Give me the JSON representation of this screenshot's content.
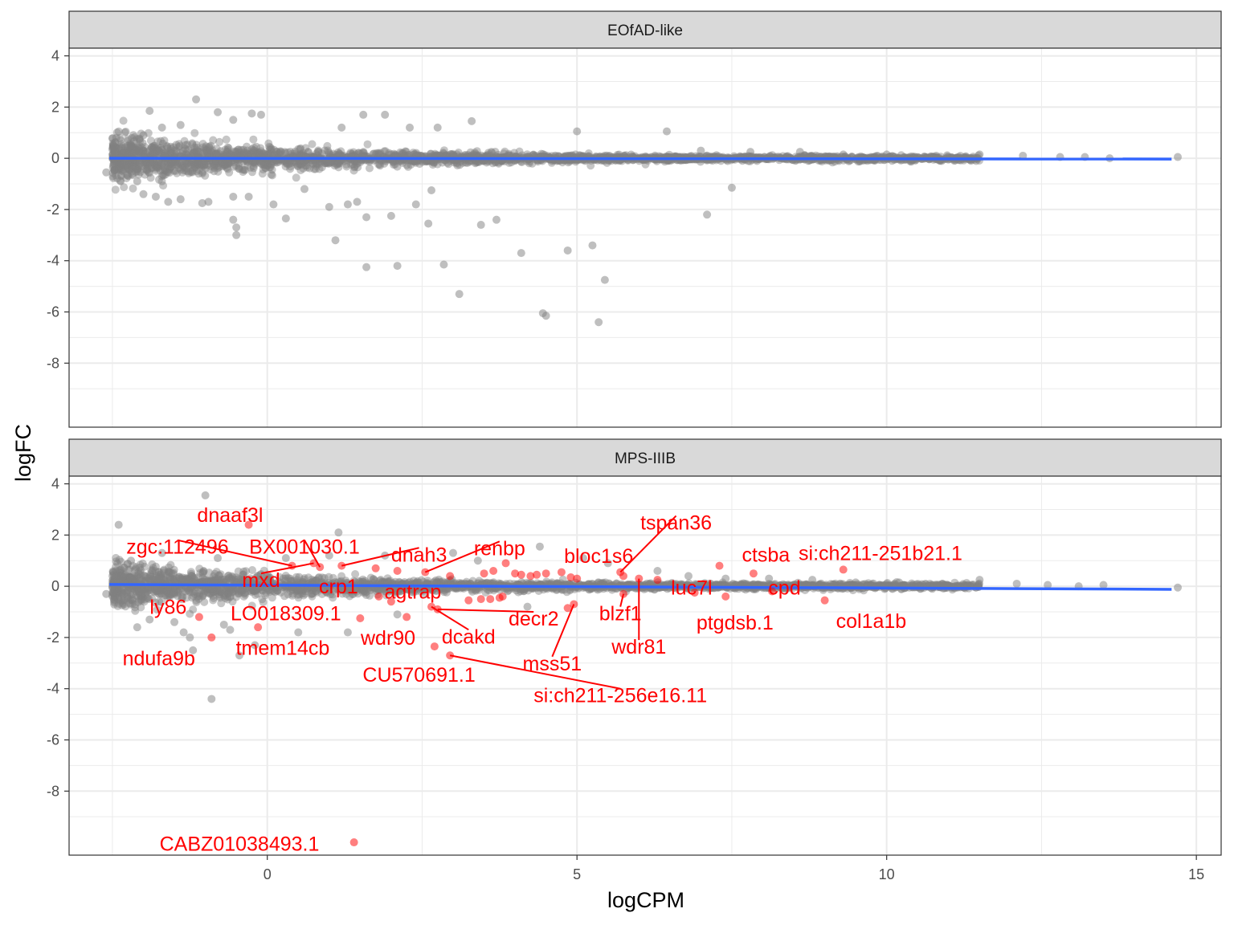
{
  "chart_data": {
    "type": "scatter",
    "title": "",
    "xlabel": "logCPM",
    "ylabel": "logFC",
    "xlim": [
      -3.2,
      15.4
    ],
    "ylim": [
      -10.5,
      4.3
    ],
    "x_ticks": [
      0,
      5,
      10,
      15
    ],
    "y_ticks": [
      4,
      2,
      0,
      -2,
      -4,
      -6,
      -8
    ],
    "grid": true,
    "colors": {
      "background_points": "#808080",
      "highlight_points": "#ff0000",
      "trend_line": "#3366ff",
      "strip_fill": "#d9d9d9",
      "grid": "#ebebeb"
    },
    "panels": [
      {
        "name": "EOfAD-like",
        "trend": {
          "x": [
            -2.55,
            14.6
          ],
          "y": [
            0.0,
            -0.03
          ]
        },
        "background_points": [
          {
            "x": -2.6,
            "y": -0.55
          },
          {
            "x": -2.5,
            "y": 0.35
          },
          {
            "x": -2.2,
            "y": 0.5
          },
          {
            "x": -2.1,
            "y": -0.9
          },
          {
            "x": -2.0,
            "y": 0.9
          },
          {
            "x": -2.0,
            "y": -1.4
          },
          {
            "x": -1.9,
            "y": 1.85
          },
          {
            "x": -1.8,
            "y": -1.5
          },
          {
            "x": -1.7,
            "y": 1.2
          },
          {
            "x": -1.6,
            "y": -1.7
          },
          {
            "x": -1.4,
            "y": -1.6
          },
          {
            "x": -1.4,
            "y": 1.3
          },
          {
            "x": -1.15,
            "y": 2.3
          },
          {
            "x": -1.05,
            "y": -1.75
          },
          {
            "x": -0.95,
            "y": -1.7
          },
          {
            "x": -0.8,
            "y": 1.8
          },
          {
            "x": -0.55,
            "y": 1.5
          },
          {
            "x": -0.55,
            "y": -1.5
          },
          {
            "x": -0.25,
            "y": 1.75
          },
          {
            "x": -0.55,
            "y": -2.4
          },
          {
            "x": -0.5,
            "y": -2.7
          },
          {
            "x": -0.5,
            "y": -3.0
          },
          {
            "x": -0.3,
            "y": -1.5
          },
          {
            "x": -0.1,
            "y": 1.7
          },
          {
            "x": 0.1,
            "y": -1.8
          },
          {
            "x": 0.3,
            "y": -2.35
          },
          {
            "x": 0.6,
            "y": -1.2
          },
          {
            "x": 1.0,
            "y": -1.9
          },
          {
            "x": 1.1,
            "y": -3.2
          },
          {
            "x": 1.2,
            "y": 1.2
          },
          {
            "x": 1.3,
            "y": -1.8
          },
          {
            "x": 1.45,
            "y": -1.7
          },
          {
            "x": 1.6,
            "y": -4.25
          },
          {
            "x": 1.6,
            "y": -2.3
          },
          {
            "x": 1.55,
            "y": 1.7
          },
          {
            "x": 1.9,
            "y": 1.7
          },
          {
            "x": 2.0,
            "y": -2.25
          },
          {
            "x": 2.1,
            "y": -4.2
          },
          {
            "x": 2.3,
            "y": 1.2
          },
          {
            "x": 2.4,
            "y": -1.8
          },
          {
            "x": 2.6,
            "y": -2.55
          },
          {
            "x": 2.65,
            "y": -1.25
          },
          {
            "x": 2.75,
            "y": 1.2
          },
          {
            "x": 2.85,
            "y": -4.15
          },
          {
            "x": 3.1,
            "y": -5.3
          },
          {
            "x": 3.3,
            "y": 1.45
          },
          {
            "x": 3.45,
            "y": -2.6
          },
          {
            "x": 3.7,
            "y": -2.4
          },
          {
            "x": 4.1,
            "y": -3.7
          },
          {
            "x": 4.45,
            "y": -6.05
          },
          {
            "x": 4.5,
            "y": -6.15
          },
          {
            "x": 4.85,
            "y": -3.6
          },
          {
            "x": 5.0,
            "y": 1.05
          },
          {
            "x": 5.25,
            "y": -3.4
          },
          {
            "x": 5.45,
            "y": -4.75
          },
          {
            "x": 5.35,
            "y": -6.4
          },
          {
            "x": 6.45,
            "y": 1.05
          },
          {
            "x": 7.1,
            "y": -2.2
          },
          {
            "x": 7.5,
            "y": -1.15
          },
          {
            "x": 7.0,
            "y": 0.3
          },
          {
            "x": 7.8,
            "y": 0.25
          },
          {
            "x": 8.6,
            "y": 0.25
          },
          {
            "x": 9.3,
            "y": 0.15
          },
          {
            "x": 10.0,
            "y": 0.15
          },
          {
            "x": 10.8,
            "y": 0.1
          },
          {
            "x": 11.5,
            "y": 0.15
          },
          {
            "x": 12.2,
            "y": 0.1
          },
          {
            "x": 12.8,
            "y": 0.05
          },
          {
            "x": 13.2,
            "y": 0.05
          },
          {
            "x": 13.6,
            "y": 0.0
          },
          {
            "x": 14.7,
            "y": 0.05
          }
        ]
      },
      {
        "name": "MPS-IIIB",
        "trend": {
          "x": [
            -2.55,
            14.6
          ],
          "y": [
            0.07,
            -0.12
          ]
        },
        "background_points": [
          {
            "x": -2.6,
            "y": -0.3
          },
          {
            "x": -2.4,
            "y": 2.4
          },
          {
            "x": -2.2,
            "y": 1.0
          },
          {
            "x": -2.1,
            "y": -1.6
          },
          {
            "x": -1.9,
            "y": -1.3
          },
          {
            "x": -1.7,
            "y": 1.3
          },
          {
            "x": -1.5,
            "y": -1.4
          },
          {
            "x": -1.35,
            "y": -1.8
          },
          {
            "x": -1.25,
            "y": -2.0
          },
          {
            "x": -1.2,
            "y": -2.5
          },
          {
            "x": -1.0,
            "y": 3.55
          },
          {
            "x": -0.9,
            "y": -4.4
          },
          {
            "x": -0.8,
            "y": 1.1
          },
          {
            "x": -0.7,
            "y": -1.5
          },
          {
            "x": -0.6,
            "y": -1.7
          },
          {
            "x": -0.45,
            "y": -2.7
          },
          {
            "x": -0.2,
            "y": -2.3
          },
          {
            "x": 0.3,
            "y": 1.1
          },
          {
            "x": 0.5,
            "y": -1.8
          },
          {
            "x": 1.0,
            "y": 1.2
          },
          {
            "x": 1.15,
            "y": 2.1
          },
          {
            "x": 1.3,
            "y": -1.8
          },
          {
            "x": 1.9,
            "y": 1.2
          },
          {
            "x": 2.1,
            "y": -1.1
          },
          {
            "x": 3.0,
            "y": 1.3
          },
          {
            "x": 3.4,
            "y": 1.0
          },
          {
            "x": 4.2,
            "y": -0.8
          },
          {
            "x": 4.4,
            "y": 1.55
          },
          {
            "x": 5.1,
            "y": 1.1
          },
          {
            "x": 5.5,
            "y": 0.9
          },
          {
            "x": 6.3,
            "y": 0.6
          },
          {
            "x": 6.8,
            "y": 0.4
          },
          {
            "x": 7.4,
            "y": 0.3
          },
          {
            "x": 8.1,
            "y": 0.3
          },
          {
            "x": 8.8,
            "y": 0.25
          },
          {
            "x": 9.5,
            "y": 0.15
          },
          {
            "x": 10.2,
            "y": 0.15
          },
          {
            "x": 10.9,
            "y": 0.1
          },
          {
            "x": 11.5,
            "y": 0.25
          },
          {
            "x": 12.1,
            "y": 0.1
          },
          {
            "x": 12.6,
            "y": 0.05
          },
          {
            "x": 13.1,
            "y": 0.0
          },
          {
            "x": 13.5,
            "y": 0.05
          },
          {
            "x": 14.7,
            "y": -0.05
          }
        ],
        "highlight_points": [
          {
            "x": -0.3,
            "y": 2.4
          },
          {
            "x": 0.4,
            "y": 0.8
          },
          {
            "x": 0.75,
            "y": 0.9
          },
          {
            "x": 0.85,
            "y": 0.75
          },
          {
            "x": 1.2,
            "y": 0.8
          },
          {
            "x": 1.75,
            "y": 0.7
          },
          {
            "x": 2.1,
            "y": 0.6
          },
          {
            "x": 2.55,
            "y": 0.55
          },
          {
            "x": 2.95,
            "y": 0.4
          },
          {
            "x": 3.5,
            "y": 0.5
          },
          {
            "x": 3.65,
            "y": 0.6
          },
          {
            "x": 3.85,
            "y": 0.9
          },
          {
            "x": 4.0,
            "y": 0.5
          },
          {
            "x": 4.1,
            "y": 0.45
          },
          {
            "x": 4.25,
            "y": 0.4
          },
          {
            "x": 4.35,
            "y": 0.45
          },
          {
            "x": 4.5,
            "y": 0.5
          },
          {
            "x": 4.75,
            "y": 0.55
          },
          {
            "x": 4.9,
            "y": 0.35
          },
          {
            "x": 5.0,
            "y": 0.3
          },
          {
            "x": 5.7,
            "y": 0.55
          },
          {
            "x": 5.75,
            "y": 0.4
          },
          {
            "x": 6.0,
            "y": 0.3
          },
          {
            "x": 6.3,
            "y": 0.25
          },
          {
            "x": 7.3,
            "y": 0.8
          },
          {
            "x": 7.85,
            "y": 0.5
          },
          {
            "x": 9.3,
            "y": 0.65
          },
          {
            "x": 1.8,
            "y": -0.4
          },
          {
            "x": 2.0,
            "y": -0.6
          },
          {
            "x": 2.65,
            "y": -0.8
          },
          {
            "x": 2.75,
            "y": -0.9
          },
          {
            "x": 3.25,
            "y": -0.55
          },
          {
            "x": 3.45,
            "y": -0.5
          },
          {
            "x": 3.6,
            "y": -0.5
          },
          {
            "x": 3.75,
            "y": -0.45
          },
          {
            "x": 3.8,
            "y": -0.4
          },
          {
            "x": 4.95,
            "y": -0.7
          },
          {
            "x": 4.85,
            "y": -0.85
          },
          {
            "x": 5.75,
            "y": -0.3
          },
          {
            "x": 7.4,
            "y": -0.4
          },
          {
            "x": 9.0,
            "y": -0.55
          },
          {
            "x": 8.15,
            "y": -0.2
          },
          {
            "x": 6.9,
            "y": -0.25
          },
          {
            "x": 1.5,
            "y": -1.25
          },
          {
            "x": 2.25,
            "y": -1.2
          },
          {
            "x": -1.1,
            "y": -1.2
          },
          {
            "x": -0.9,
            "y": -2.0
          },
          {
            "x": -0.15,
            "y": -1.6
          },
          {
            "x": 2.7,
            "y": -2.35
          },
          {
            "x": 2.95,
            "y": -2.7
          },
          {
            "x": 1.4,
            "y": -10.0
          }
        ],
        "labels": [
          {
            "text": "dnaaf3l",
            "x": -0.6,
            "y": 2.8
          },
          {
            "text": "zgc:112496",
            "x": -1.45,
            "y": 1.55
          },
          {
            "text": "BX001030.1",
            "x": 0.6,
            "y": 1.55
          },
          {
            "text": "dnah3",
            "x": 2.45,
            "y": 1.25
          },
          {
            "text": "renbp",
            "x": 3.75,
            "y": 1.5
          },
          {
            "text": "tspan36",
            "x": 6.6,
            "y": 2.5
          },
          {
            "text": "bloc1s6",
            "x": 5.35,
            "y": 1.2
          },
          {
            "text": "ctsba",
            "x": 8.05,
            "y": 1.25
          },
          {
            "text": "si:ch211-251b21.1",
            "x": 9.9,
            "y": 1.3
          },
          {
            "text": "mxd",
            "x": -0.1,
            "y": 0.25
          },
          {
            "text": "crp1",
            "x": 1.15,
            "y": 0.0
          },
          {
            "text": "agtrap",
            "x": 2.35,
            "y": -0.2
          },
          {
            "text": "luc7l",
            "x": 6.85,
            "y": -0.05
          },
          {
            "text": "cpd",
            "x": 8.35,
            "y": -0.05
          },
          {
            "text": "ly86",
            "x": -1.6,
            "y": -0.8
          },
          {
            "text": "LO018309.1",
            "x": 0.3,
            "y": -1.05
          },
          {
            "text": "decr2",
            "x": 4.3,
            "y": -1.25
          },
          {
            "text": "blzf1",
            "x": 5.7,
            "y": -1.05
          },
          {
            "text": "ptgdsb.1",
            "x": 7.55,
            "y": -1.4
          },
          {
            "text": "col1a1b",
            "x": 9.75,
            "y": -1.35
          },
          {
            "text": "wdr90",
            "x": 1.95,
            "y": -2.0
          },
          {
            "text": "dcakd",
            "x": 3.25,
            "y": -1.95
          },
          {
            "text": "tmem14cb",
            "x": 0.25,
            "y": -2.4
          },
          {
            "text": "wdr81",
            "x": 6.0,
            "y": -2.35
          },
          {
            "text": "ndufa9b",
            "x": -1.75,
            "y": -2.8
          },
          {
            "text": "mss51",
            "x": 4.6,
            "y": -3.0
          },
          {
            "text": "CU570691.1",
            "x": 2.45,
            "y": -3.45
          },
          {
            "text": "si:ch211-256e16.11",
            "x": 5.7,
            "y": -4.25
          },
          {
            "text": "CABZ01038493.1",
            "x": -0.45,
            "y": -10.05
          }
        ]
      }
    ]
  }
}
